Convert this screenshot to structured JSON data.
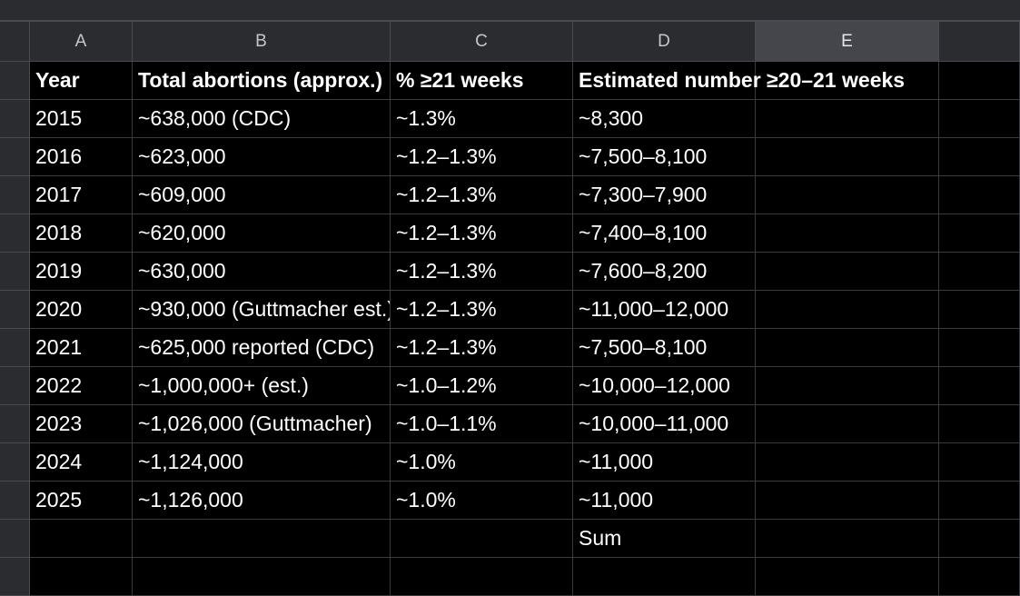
{
  "columns": [
    "A",
    "B",
    "C",
    "D",
    "E"
  ],
  "selected_column": "E",
  "header_row": [
    "Year",
    "Total abortions (approx.)",
    "% ≥21 weeks",
    "Estimated number ≥20–21 weeks",
    ""
  ],
  "rows": [
    [
      "2015",
      "~638,000 (CDC)",
      "~1.3%",
      "~8,300",
      ""
    ],
    [
      "2016",
      "~623,000",
      "~1.2–1.3%",
      "~7,500–8,100",
      ""
    ],
    [
      "2017",
      "~609,000",
      "~1.2–1.3%",
      "~7,300–7,900",
      ""
    ],
    [
      "2018",
      "~620,000",
      "~1.2–1.3%",
      "~7,400–8,100",
      ""
    ],
    [
      "2019",
      "~630,000",
      "~1.2–1.3%",
      "~7,600–8,200",
      ""
    ],
    [
      "2020",
      "~930,000 (Guttmacher est.)",
      "~1.2–1.3%",
      "~11,000–12,000",
      ""
    ],
    [
      "2021",
      "~625,000 reported (CDC)",
      "~1.2–1.3%",
      "~7,500–8,100",
      ""
    ],
    [
      "2022",
      "~1,000,000+ (est.)",
      "~1.0–1.2%",
      "~10,000–12,000",
      ""
    ],
    [
      "2023",
      "~1,026,000 (Guttmacher)",
      "~1.0–1.1%",
      "~10,000–11,000",
      ""
    ],
    [
      "2024",
      "~1,124,000",
      "~1.0%",
      "~11,000",
      ""
    ],
    [
      "2025",
      "~1,126,000",
      "~1.0%",
      "~11,000",
      ""
    ],
    [
      "",
      "",
      "",
      "Sum",
      ""
    ],
    [
      "",
      "",
      "",
      "",
      ""
    ]
  ]
}
